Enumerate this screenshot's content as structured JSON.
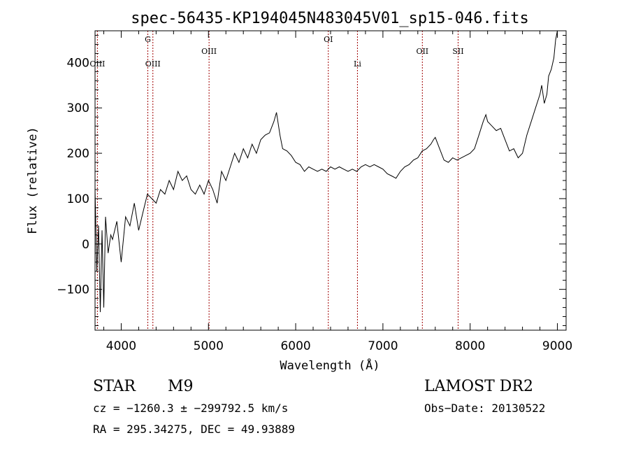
{
  "chart_data": {
    "type": "line",
    "title": "spec-56435-KP194045N483045V01_sp15-046.fits",
    "xlabel": "Wavelength (Å)",
    "ylabel": "Flux (relative)",
    "xlim": [
      3700,
      9100
    ],
    "ylim": [
      -190,
      470
    ],
    "x_ticks": [
      4000,
      5000,
      6000,
      7000,
      8000,
      9000
    ],
    "y_ticks": [
      -100,
      0,
      100,
      200,
      300,
      400
    ],
    "x_tick_labels": [
      "4000",
      "5000",
      "6000",
      "7000",
      "8000",
      "9000"
    ],
    "y_tick_labels": [
      "−100",
      "0",
      "100",
      "200",
      "300",
      "400"
    ],
    "grid": false,
    "series": [
      {
        "color": "#000000",
        "x": [
          3700,
          3720,
          3740,
          3760,
          3780,
          3800,
          3820,
          3850,
          3880,
          3900,
          3950,
          4000,
          4050,
          4100,
          4150,
          4200,
          4250,
          4300,
          4350,
          4400,
          4450,
          4500,
          4550,
          4600,
          4650,
          4700,
          4750,
          4800,
          4850,
          4900,
          4950,
          5000,
          5050,
          5100,
          5150,
          5200,
          5250,
          5300,
          5350,
          5400,
          5450,
          5500,
          5550,
          5600,
          5650,
          5700,
          5750,
          5780,
          5800,
          5820,
          5850,
          5900,
          5950,
          6000,
          6050,
          6100,
          6150,
          6200,
          6250,
          6300,
          6350,
          6400,
          6450,
          6500,
          6550,
          6600,
          6650,
          6700,
          6750,
          6800,
          6850,
          6900,
          6950,
          7000,
          7050,
          7100,
          7150,
          7200,
          7250,
          7300,
          7350,
          7400,
          7450,
          7500,
          7550,
          7580,
          7600,
          7650,
          7700,
          7750,
          7800,
          7850,
          7900,
          7950,
          8000,
          8050,
          8100,
          8150,
          8180,
          8200,
          8250,
          8300,
          8350,
          8400,
          8450,
          8500,
          8550,
          8600,
          8650,
          8700,
          8750,
          8800,
          8820,
          8850,
          8880,
          8900,
          8930,
          8960,
          8980,
          9000
        ],
        "y": [
          120,
          -60,
          40,
          -150,
          30,
          -140,
          60,
          -20,
          20,
          10,
          50,
          -40,
          60,
          40,
          90,
          30,
          70,
          110,
          100,
          90,
          120,
          110,
          140,
          120,
          160,
          140,
          150,
          120,
          110,
          130,
          110,
          140,
          120,
          90,
          160,
          140,
          170,
          200,
          180,
          210,
          190,
          220,
          200,
          230,
          240,
          245,
          270,
          290,
          265,
          240,
          210,
          205,
          195,
          180,
          175,
          160,
          170,
          165,
          160,
          165,
          160,
          170,
          165,
          170,
          165,
          160,
          165,
          160,
          170,
          175,
          170,
          175,
          170,
          165,
          155,
          150,
          145,
          160,
          170,
          175,
          185,
          190,
          205,
          210,
          220,
          230,
          235,
          210,
          185,
          180,
          190,
          185,
          190,
          195,
          200,
          210,
          240,
          270,
          285,
          270,
          260,
          250,
          255,
          230,
          205,
          210,
          190,
          200,
          240,
          270,
          300,
          330,
          350,
          310,
          330,
          370,
          385,
          410,
          450,
          470
        ]
      }
    ],
    "lines": [
      {
        "label": "OIII",
        "wavelength": 3727,
        "row": 3
      },
      {
        "label": "G",
        "wavelength": 4305,
        "row": 1
      },
      {
        "label": "OIII",
        "wavelength": 4363,
        "row": 3
      },
      {
        "label": "OIII",
        "wavelength": 5007,
        "row": 2
      },
      {
        "label": "OI",
        "wavelength": 6374,
        "row": 1
      },
      {
        "label": "Li",
        "wavelength": 6708,
        "row": 3
      },
      {
        "label": "OII",
        "wavelength": 7452,
        "row": 2
      },
      {
        "label": "SII",
        "wavelength": 7862,
        "row": 2
      }
    ]
  },
  "info": {
    "class": "STAR",
    "subclass": "M9",
    "survey": "LAMOST DR2",
    "cz": "cz = −1260.3 ± −299792.5 km/s",
    "obs_date": "Obs−Date: 20130522",
    "radec": "RA = 295.34275, DEC =  49.93889"
  }
}
